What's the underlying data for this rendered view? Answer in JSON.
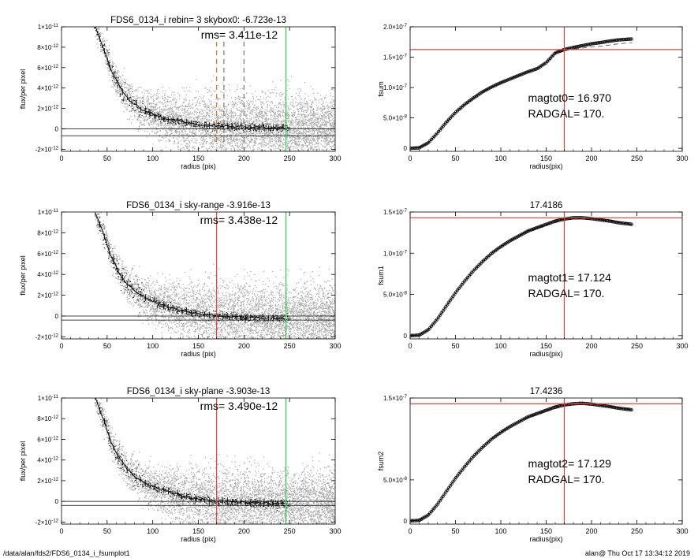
{
  "footer": {
    "left": "/data/alan/fds2/FDS6_0134_i_fsumplot1",
    "right": "alan@  Thu Oct 17 13:34:12 2019"
  },
  "colors": {
    "red": "#e8403a",
    "green": "#2ecc40",
    "orange": "#e07a10",
    "scatter": "#a8a8a8",
    "curve": "#000000"
  },
  "chart_data": [
    {
      "type": "scatter",
      "panel": "left-1",
      "title": "FDS6_0134_i rebin= 3    skybox0: -6.723e-13",
      "annotation": "rms= 3.411e-12",
      "xlabel": "radius (pix)",
      "ylabel": "flux/per pixel",
      "xlim": [
        0,
        300
      ],
      "ylim": [
        -2.2e-12,
        1e-11
      ],
      "x_ticks": [
        "0",
        "50",
        "100",
        "150",
        "200",
        "250",
        "300"
      ],
      "y_ticks": [
        {
          "v": 1e-11,
          "base": "1×10",
          "exp": "-11"
        },
        {
          "v": 8e-12,
          "base": "8×10",
          "exp": "-12"
        },
        {
          "v": 6e-12,
          "base": "6×10",
          "exp": "-12"
        },
        {
          "v": 4e-12,
          "base": "4×10",
          "exp": "-12"
        },
        {
          "v": 2e-12,
          "base": "2×10",
          "exp": "-12"
        },
        {
          "v": 0,
          "base": "0",
          "exp": ""
        },
        {
          "v": -2e-12,
          "base": "-2×10",
          "exp": "-12"
        }
      ],
      "profile": [
        [
          37,
          1e-11
        ],
        [
          45,
          8.2e-12
        ],
        [
          55,
          5.6e-12
        ],
        [
          65,
          3.9e-12
        ],
        [
          75,
          2.8e-12
        ],
        [
          85,
          2.1e-12
        ],
        [
          95,
          1.6e-12
        ],
        [
          110,
          1.1e-12
        ],
        [
          125,
          8e-13
        ],
        [
          140,
          5.5e-13
        ],
        [
          155,
          4e-13
        ],
        [
          170,
          3e-13
        ],
        [
          185,
          2.4e-13
        ],
        [
          200,
          2e-13
        ],
        [
          215,
          1.7e-13
        ],
        [
          230,
          1.4e-13
        ],
        [
          245,
          1.2e-13
        ]
      ],
      "hlines": [
        0,
        -6.723e-13
      ],
      "vlines": [
        {
          "x": 170,
          "color": "orange",
          "style": "dashed"
        },
        {
          "x": 178,
          "color": "gray",
          "style": "dashed"
        },
        {
          "x": 200,
          "color": "gray",
          "style": "dashed"
        },
        {
          "x": 246,
          "color": "green",
          "style": "solid"
        }
      ],
      "scatter_cutoff": 300
    },
    {
      "type": "line",
      "panel": "right-1",
      "title": "",
      "annotation_lines": [
        "magtot0=  16.970",
        "RADGAL=    170."
      ],
      "xlabel": "radius(pix)",
      "ylabel": "fsum",
      "xlim": [
        0,
        300
      ],
      "ylim": [
        -5e-09,
        2e-07
      ],
      "x_ticks": [
        "0",
        "50",
        "100",
        "150",
        "200",
        "250",
        "300"
      ],
      "y_ticks": [
        {
          "v": 2e-07,
          "base": "2.0×10",
          "exp": "-7"
        },
        {
          "v": 1.5e-07,
          "base": "1.5×10",
          "exp": "-7"
        },
        {
          "v": 1e-07,
          "base": "1.0×10",
          "exp": "-7"
        },
        {
          "v": 5e-08,
          "base": "5.0×10",
          "exp": "-8"
        },
        {
          "v": 0,
          "base": "0",
          "exp": ""
        }
      ],
      "curve": [
        [
          0,
          0
        ],
        [
          10,
          8e-10
        ],
        [
          20,
          9e-09
        ],
        [
          30,
          2.5e-08
        ],
        [
          40,
          4.3e-08
        ],
        [
          50,
          5.9e-08
        ],
        [
          60,
          7.2e-08
        ],
        [
          70,
          8.3e-08
        ],
        [
          80,
          9.3e-08
        ],
        [
          90,
          1.01e-07
        ],
        [
          100,
          1.08e-07
        ],
        [
          110,
          1.14e-07
        ],
        [
          120,
          1.2e-07
        ],
        [
          130,
          1.26e-07
        ],
        [
          140,
          1.31e-07
        ],
        [
          150,
          1.41e-07
        ],
        [
          160,
          1.57e-07
        ],
        [
          170,
          1.625e-07
        ],
        [
          180,
          1.66e-07
        ],
        [
          190,
          1.69e-07
        ],
        [
          200,
          1.72e-07
        ],
        [
          210,
          1.74e-07
        ],
        [
          220,
          1.765e-07
        ],
        [
          230,
          1.785e-07
        ],
        [
          245,
          1.8e-07
        ]
      ],
      "curve_dashed": [
        [
          0,
          0
        ],
        [
          10,
          8e-10
        ],
        [
          20,
          9e-09
        ],
        [
          30,
          2.5e-08
        ],
        [
          40,
          4.3e-08
        ],
        [
          50,
          5.9e-08
        ],
        [
          60,
          7.2e-08
        ],
        [
          70,
          8.3e-08
        ],
        [
          80,
          9.3e-08
        ],
        [
          90,
          1.01e-07
        ],
        [
          100,
          1.08e-07
        ],
        [
          110,
          1.14e-07
        ],
        [
          120,
          1.2e-07
        ],
        [
          130,
          1.26e-07
        ],
        [
          140,
          1.31e-07
        ],
        [
          150,
          1.41e-07
        ],
        [
          160,
          1.56e-07
        ],
        [
          170,
          1.61e-07
        ],
        [
          180,
          1.63e-07
        ],
        [
          190,
          1.65e-07
        ],
        [
          200,
          1.67e-07
        ],
        [
          210,
          1.68e-07
        ],
        [
          220,
          1.7e-07
        ],
        [
          230,
          1.72e-07
        ],
        [
          245,
          1.74e-07
        ]
      ],
      "vline": 170,
      "hline": 1.625e-07
    },
    {
      "type": "scatter",
      "panel": "left-2",
      "title": "FDS6_0134_i sky-range -3.916e-13",
      "annotation": "rms= 3.438e-12",
      "xlabel": "radius (pix)",
      "ylabel": "flux/per pixel",
      "xlim": [
        0,
        300
      ],
      "ylim": [
        -2.2e-12,
        1e-11
      ],
      "x_ticks": [
        "0",
        "50",
        "100",
        "150",
        "200",
        "250",
        "300"
      ],
      "y_ticks": [
        {
          "v": 1e-11,
          "base": "1×10",
          "exp": "-11"
        },
        {
          "v": 8e-12,
          "base": "8×10",
          "exp": "-12"
        },
        {
          "v": 6e-12,
          "base": "6×10",
          "exp": "-12"
        },
        {
          "v": 4e-12,
          "base": "4×10",
          "exp": "-12"
        },
        {
          "v": 2e-12,
          "base": "2×10",
          "exp": "-12"
        },
        {
          "v": 0,
          "base": "0",
          "exp": ""
        },
        {
          "v": -2e-12,
          "base": "-2×10",
          "exp": "-12"
        }
      ],
      "profile": [
        [
          37,
          1e-11
        ],
        [
          45,
          8.2e-12
        ],
        [
          55,
          5.6e-12
        ],
        [
          65,
          3.9e-12
        ],
        [
          75,
          2.8e-12
        ],
        [
          85,
          2.1e-12
        ],
        [
          95,
          1.6e-12
        ],
        [
          110,
          1.1e-12
        ],
        [
          125,
          7e-13
        ],
        [
          140,
          4e-13
        ],
        [
          155,
          2e-13
        ],
        [
          170,
          5e-14
        ],
        [
          185,
          -5e-14
        ],
        [
          200,
          -1.2e-13
        ],
        [
          215,
          -1.6e-13
        ],
        [
          230,
          -1.9e-13
        ],
        [
          245,
          -2.1e-13
        ]
      ],
      "hlines": [
        0,
        -3.916e-13
      ],
      "vlines": [
        {
          "x": 170,
          "color": "red",
          "style": "solid"
        },
        {
          "x": 246,
          "color": "green",
          "style": "solid"
        }
      ],
      "scatter_cutoff": 300
    },
    {
      "type": "line",
      "panel": "right-2",
      "title": "17.4186",
      "annotation_lines": [
        "magtot1=  17.124",
        "RADGAL=    170."
      ],
      "xlabel": "radius(pix)",
      "ylabel": "fsum1",
      "xlim": [
        0,
        300
      ],
      "ylim": [
        -4e-09,
        1.5e-07
      ],
      "x_ticks": [
        "0",
        "50",
        "100",
        "150",
        "200",
        "250",
        "300"
      ],
      "y_ticks": [
        {
          "v": 1.5e-07,
          "base": "1.5×10",
          "exp": "-7"
        },
        {
          "v": 1e-07,
          "base": "1.0×10",
          "exp": "-7"
        },
        {
          "v": 5e-08,
          "base": "5.0×10",
          "exp": "-8"
        },
        {
          "v": 0,
          "base": "0",
          "exp": ""
        }
      ],
      "curve": [
        [
          0,
          0
        ],
        [
          10,
          6e-10
        ],
        [
          20,
          7e-09
        ],
        [
          30,
          2e-08
        ],
        [
          40,
          3.6e-08
        ],
        [
          50,
          5.2e-08
        ],
        [
          60,
          6.6e-08
        ],
        [
          70,
          7.9e-08
        ],
        [
          80,
          9e-08
        ],
        [
          90,
          1e-07
        ],
        [
          100,
          1.08e-07
        ],
        [
          110,
          1.15e-07
        ],
        [
          120,
          1.21e-07
        ],
        [
          130,
          1.27e-07
        ],
        [
          140,
          1.31e-07
        ],
        [
          150,
          1.35e-07
        ],
        [
          160,
          1.39e-07
        ],
        [
          170,
          1.415e-07
        ],
        [
          180,
          1.43e-07
        ],
        [
          190,
          1.43e-07
        ],
        [
          200,
          1.42e-07
        ],
        [
          210,
          1.405e-07
        ],
        [
          220,
          1.39e-07
        ],
        [
          230,
          1.37e-07
        ],
        [
          245,
          1.35e-07
        ]
      ],
      "curve_dashed": [
        [
          0,
          0
        ],
        [
          10,
          6e-10
        ],
        [
          20,
          7e-09
        ],
        [
          30,
          2e-08
        ],
        [
          40,
          3.6e-08
        ],
        [
          50,
          5.2e-08
        ],
        [
          60,
          6.6e-08
        ],
        [
          70,
          7.9e-08
        ],
        [
          80,
          9e-08
        ],
        [
          90,
          1e-07
        ],
        [
          100,
          1.08e-07
        ],
        [
          110,
          1.15e-07
        ],
        [
          120,
          1.21e-07
        ],
        [
          130,
          1.26e-07
        ],
        [
          140,
          1.3e-07
        ],
        [
          150,
          1.34e-07
        ],
        [
          160,
          1.37e-07
        ],
        [
          170,
          1.4e-07
        ],
        [
          180,
          1.42e-07
        ],
        [
          190,
          1.425e-07
        ],
        [
          200,
          1.42e-07
        ],
        [
          210,
          1.41e-07
        ],
        [
          220,
          1.4e-07
        ],
        [
          230,
          1.38e-07
        ],
        [
          245,
          1.36e-07
        ]
      ],
      "vline": 170,
      "hline": 1.43e-07
    },
    {
      "type": "scatter",
      "panel": "left-3",
      "title": "FDS6_0134_i sky-plane -3.903e-13",
      "annotation": "rms= 3.490e-12",
      "xlabel": "radius (pix)",
      "ylabel": "flux/per pixel",
      "xlim": [
        0,
        300
      ],
      "ylim": [
        -2.2e-12,
        1e-11
      ],
      "x_ticks": [
        "0",
        "50",
        "100",
        "150",
        "200",
        "250",
        "300"
      ],
      "y_ticks": [
        {
          "v": 1e-11,
          "base": "1×10",
          "exp": "-11"
        },
        {
          "v": 8e-12,
          "base": "8×10",
          "exp": "-12"
        },
        {
          "v": 6e-12,
          "base": "6×10",
          "exp": "-12"
        },
        {
          "v": 4e-12,
          "base": "4×10",
          "exp": "-12"
        },
        {
          "v": 2e-12,
          "base": "2×10",
          "exp": "-12"
        },
        {
          "v": 0,
          "base": "0",
          "exp": ""
        },
        {
          "v": -2e-12,
          "base": "-2×10",
          "exp": "-12"
        }
      ],
      "profile": [
        [
          37,
          1e-11
        ],
        [
          45,
          8.2e-12
        ],
        [
          55,
          5.6e-12
        ],
        [
          65,
          3.9e-12
        ],
        [
          75,
          2.8e-12
        ],
        [
          85,
          2.1e-12
        ],
        [
          95,
          1.6e-12
        ],
        [
          110,
          1.1e-12
        ],
        [
          125,
          7e-13
        ],
        [
          140,
          4e-13
        ],
        [
          155,
          2e-13
        ],
        [
          170,
          5e-14
        ],
        [
          185,
          -5e-14
        ],
        [
          200,
          -1.2e-13
        ],
        [
          215,
          -1.6e-13
        ],
        [
          230,
          -1.9e-13
        ],
        [
          245,
          -2.1e-13
        ]
      ],
      "hlines": [
        0,
        -3.903e-13
      ],
      "vlines": [
        {
          "x": 170,
          "color": "red",
          "style": "solid"
        },
        {
          "x": 246,
          "color": "green",
          "style": "solid"
        }
      ],
      "scatter_cutoff": 300
    },
    {
      "type": "line",
      "panel": "right-3",
      "title": "17.4236",
      "annotation_lines": [
        "magtot2=  17.129",
        "RADGAL=    170."
      ],
      "xlabel": "radius(pix)",
      "ylabel": "fsum2",
      "xlim": [
        0,
        300
      ],
      "ylim": [
        -4e-09,
        1.5e-07
      ],
      "x_ticks": [
        "0",
        "50",
        "100",
        "150",
        "200",
        "250",
        "300"
      ],
      "y_ticks": [
        {
          "v": 1.5e-07,
          "base": "1.5×10",
          "exp": "-7"
        },
        {
          "v": 5e-08,
          "base": "5.0×10",
          "exp": "-8"
        },
        {
          "v": 0,
          "base": "0",
          "exp": ""
        }
      ],
      "curve": [
        [
          0,
          0
        ],
        [
          10,
          6e-10
        ],
        [
          20,
          7e-09
        ],
        [
          30,
          2e-08
        ],
        [
          40,
          3.6e-08
        ],
        [
          50,
          5.2e-08
        ],
        [
          60,
          6.6e-08
        ],
        [
          70,
          7.9e-08
        ],
        [
          80,
          9e-08
        ],
        [
          90,
          1e-07
        ],
        [
          100,
          1.08e-07
        ],
        [
          110,
          1.15e-07
        ],
        [
          120,
          1.21e-07
        ],
        [
          130,
          1.27e-07
        ],
        [
          140,
          1.31e-07
        ],
        [
          150,
          1.35e-07
        ],
        [
          160,
          1.39e-07
        ],
        [
          170,
          1.415e-07
        ],
        [
          180,
          1.43e-07
        ],
        [
          190,
          1.435e-07
        ],
        [
          200,
          1.425e-07
        ],
        [
          210,
          1.41e-07
        ],
        [
          220,
          1.395e-07
        ],
        [
          230,
          1.375e-07
        ],
        [
          245,
          1.355e-07
        ]
      ],
      "curve_dashed": [
        [
          0,
          0
        ],
        [
          10,
          6e-10
        ],
        [
          20,
          7e-09
        ],
        [
          30,
          2e-08
        ],
        [
          40,
          3.6e-08
        ],
        [
          50,
          5.2e-08
        ],
        [
          60,
          6.6e-08
        ],
        [
          70,
          7.9e-08
        ],
        [
          80,
          9e-08
        ],
        [
          90,
          1e-07
        ],
        [
          100,
          1.08e-07
        ],
        [
          110,
          1.15e-07
        ],
        [
          120,
          1.21e-07
        ],
        [
          130,
          1.26e-07
        ],
        [
          140,
          1.3e-07
        ],
        [
          150,
          1.34e-07
        ],
        [
          160,
          1.37e-07
        ],
        [
          170,
          1.4e-07
        ],
        [
          180,
          1.42e-07
        ],
        [
          190,
          1.425e-07
        ],
        [
          200,
          1.42e-07
        ],
        [
          210,
          1.41e-07
        ],
        [
          220,
          1.4e-07
        ],
        [
          230,
          1.38e-07
        ],
        [
          245,
          1.36e-07
        ]
      ],
      "vline": 170,
      "hline": 1.43e-07
    }
  ]
}
